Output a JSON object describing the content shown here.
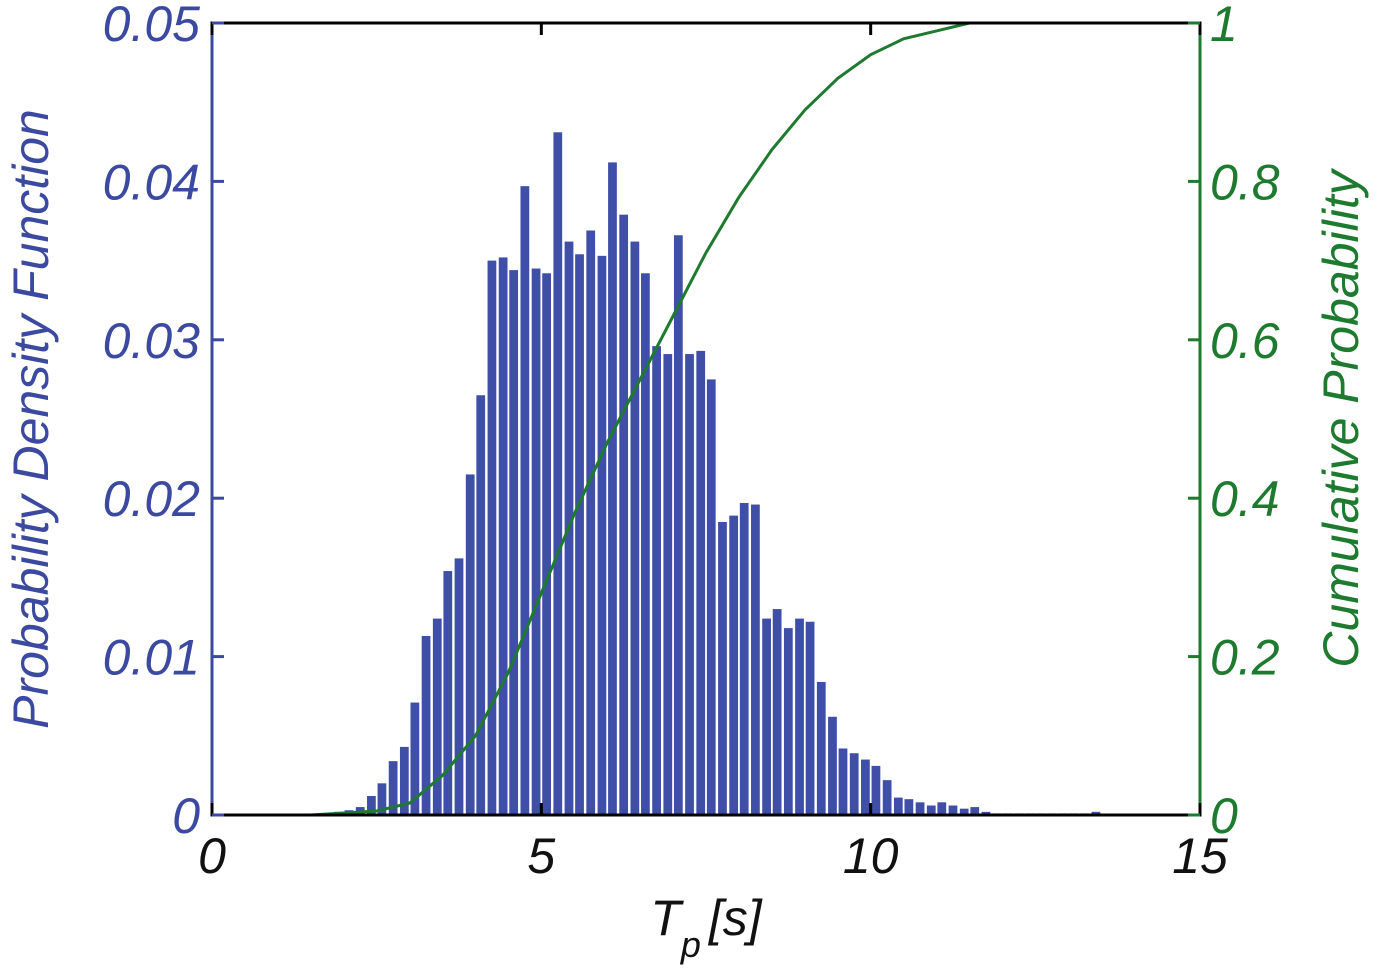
{
  "chart_data": {
    "type": "bar",
    "x_label_main": "T",
    "x_label_sub": "p",
    "x_label_unit": "[s]",
    "ylabel_left": "Probability Density Function",
    "ylabel_right": "Cumulative Probability",
    "xlim": [
      0,
      15
    ],
    "ylim_left": [
      0,
      0.05
    ],
    "ylim_right": [
      0,
      1
    ],
    "x_ticks": [
      "0",
      "5",
      "10",
      "15"
    ],
    "y_left_ticks": [
      "0",
      "0.01",
      "0.02",
      "0.03",
      "0.04",
      "0.05"
    ],
    "y_right_ticks": [
      "0",
      "0.2",
      "0.4",
      "0.6",
      "0.8",
      "1"
    ],
    "bar_width": 0.133,
    "colors": {
      "bars": "#3f4fa8",
      "cdf": "#1d7a2e",
      "left_axis": "#3b4aa0",
      "right_axis": "#1d7a2e"
    },
    "series": [
      {
        "type": "histogram",
        "x": [
          1.75,
          1.92,
          2.08,
          2.25,
          2.42,
          2.58,
          2.75,
          2.92,
          3.08,
          3.25,
          3.42,
          3.58,
          3.75,
          3.92,
          4.08,
          4.25,
          4.42,
          4.58,
          4.75,
          4.92,
          5.08,
          5.25,
          5.42,
          5.58,
          5.75,
          5.92,
          6.08,
          6.25,
          6.42,
          6.58,
          6.75,
          6.92,
          7.08,
          7.25,
          7.42,
          7.58,
          7.75,
          7.92,
          8.08,
          8.25,
          8.42,
          8.58,
          8.75,
          8.92,
          9.08,
          9.25,
          9.42,
          9.58,
          9.75,
          9.92,
          10.08,
          10.25,
          10.42,
          10.58,
          10.75,
          10.92,
          11.08,
          11.25,
          11.42,
          11.58,
          11.75,
          11.92,
          12.08,
          12.25,
          12.42,
          12.58,
          12.75,
          12.92,
          13.08,
          13.25,
          13.42
        ],
        "values": [
          0.0001,
          0.0002,
          0.0003,
          0.0005,
          0.0012,
          0.002,
          0.0034,
          0.0043,
          0.0071,
          0.0113,
          0.0124,
          0.0154,
          0.0162,
          0.0215,
          0.0265,
          0.035,
          0.0352,
          0.0344,
          0.0397,
          0.0345,
          0.0342,
          0.0431,
          0.0362,
          0.0354,
          0.0369,
          0.0353,
          0.0412,
          0.0379,
          0.0362,
          0.0342,
          0.0296,
          0.0291,
          0.0366,
          0.0291,
          0.0293,
          0.0275,
          0.0185,
          0.0189,
          0.0197,
          0.0196,
          0.0124,
          0.013,
          0.0118,
          0.0124,
          0.0122,
          0.0084,
          0.0062,
          0.0042,
          0.0039,
          0.0035,
          0.0031,
          0.0022,
          0.0011,
          0.001,
          0.0008,
          0.0006,
          0.0008,
          0.0006,
          0.0004,
          0.0005,
          0.0002,
          0.0001,
          0.0001,
          0.0001,
          0.0001,
          0.0001,
          0.0001,
          0.0001,
          0.0001,
          0.0001,
          0.0002
        ]
      },
      {
        "type": "line",
        "x": [
          1.5,
          2.5,
          3.0,
          3.5,
          4.0,
          4.5,
          5.0,
          5.5,
          6.0,
          6.5,
          7.0,
          7.5,
          8.0,
          8.5,
          9.0,
          9.5,
          10.0,
          10.5,
          11.0,
          11.5,
          12.0,
          13.0,
          13.5
        ],
        "values": [
          0.0,
          0.005,
          0.015,
          0.05,
          0.1,
          0.18,
          0.28,
          0.38,
          0.47,
          0.55,
          0.63,
          0.71,
          0.78,
          0.84,
          0.89,
          0.93,
          0.96,
          0.98,
          0.99,
          1.0,
          1.0,
          1.0,
          1.0
        ]
      }
    ]
  }
}
